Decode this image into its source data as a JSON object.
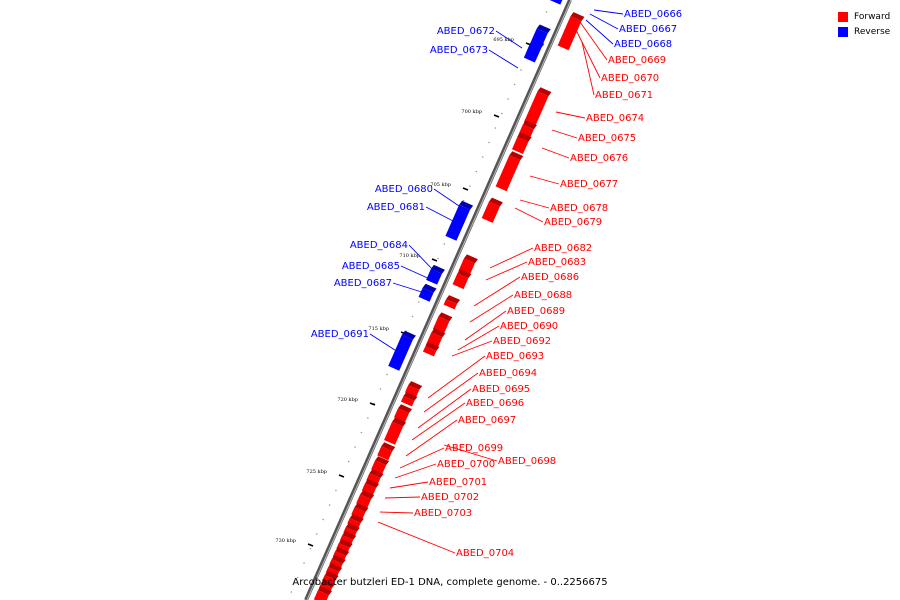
{
  "caption": "Arcobacter butzleri ED-1 DNA, complete genome. - 0..2256675",
  "legend": [
    {
      "label": "Forward",
      "color": "#ff0000"
    },
    {
      "label": "Reverse",
      "color": "#0000ff"
    }
  ],
  "colors": {
    "forward": "#ff0000",
    "reverse": "#0000ff",
    "backbone": "#888888"
  },
  "ticks": [
    "695 kbp",
    "700 kbp",
    "705 kbp",
    "710 kbp",
    "715 kbp",
    "720 kbp",
    "725 kbp",
    "730 kbp"
  ],
  "genes": [
    {
      "id": "ABED_0666",
      "strand": "reverse"
    },
    {
      "id": "ABED_0667",
      "strand": "reverse"
    },
    {
      "id": "ABED_0668",
      "strand": "reverse"
    },
    {
      "id": "ABED_0669",
      "strand": "forward"
    },
    {
      "id": "ABED_0670",
      "strand": "forward"
    },
    {
      "id": "ABED_0671",
      "strand": "forward"
    },
    {
      "id": "ABED_0672",
      "strand": "reverse"
    },
    {
      "id": "ABED_0673",
      "strand": "reverse"
    },
    {
      "id": "ABED_0674",
      "strand": "forward"
    },
    {
      "id": "ABED_0675",
      "strand": "forward"
    },
    {
      "id": "ABED_0676",
      "strand": "forward"
    },
    {
      "id": "ABED_0677",
      "strand": "forward"
    },
    {
      "id": "ABED_0678",
      "strand": "forward"
    },
    {
      "id": "ABED_0679",
      "strand": "forward"
    },
    {
      "id": "ABED_0680",
      "strand": "reverse"
    },
    {
      "id": "ABED_0681",
      "strand": "reverse"
    },
    {
      "id": "ABED_0682",
      "strand": "forward"
    },
    {
      "id": "ABED_0683",
      "strand": "forward"
    },
    {
      "id": "ABED_0684",
      "strand": "reverse"
    },
    {
      "id": "ABED_0685",
      "strand": "reverse"
    },
    {
      "id": "ABED_0686",
      "strand": "forward"
    },
    {
      "id": "ABED_0687",
      "strand": "reverse"
    },
    {
      "id": "ABED_0688",
      "strand": "forward"
    },
    {
      "id": "ABED_0689",
      "strand": "forward"
    },
    {
      "id": "ABED_0690",
      "strand": "forward"
    },
    {
      "id": "ABED_0691",
      "strand": "reverse"
    },
    {
      "id": "ABED_0692",
      "strand": "forward"
    },
    {
      "id": "ABED_0693",
      "strand": "forward"
    },
    {
      "id": "ABED_0694",
      "strand": "forward"
    },
    {
      "id": "ABED_0695",
      "strand": "forward"
    },
    {
      "id": "ABED_0696",
      "strand": "forward"
    },
    {
      "id": "ABED_0697",
      "strand": "forward"
    },
    {
      "id": "ABED_0698",
      "strand": "forward"
    },
    {
      "id": "ABED_0699",
      "strand": "forward"
    },
    {
      "id": "ABED_0700",
      "strand": "forward"
    },
    {
      "id": "ABED_0701",
      "strand": "forward"
    },
    {
      "id": "ABED_0702",
      "strand": "forward"
    },
    {
      "id": "ABED_0703",
      "strand": "forward"
    },
    {
      "id": "ABED_0704",
      "strand": "forward"
    }
  ]
}
